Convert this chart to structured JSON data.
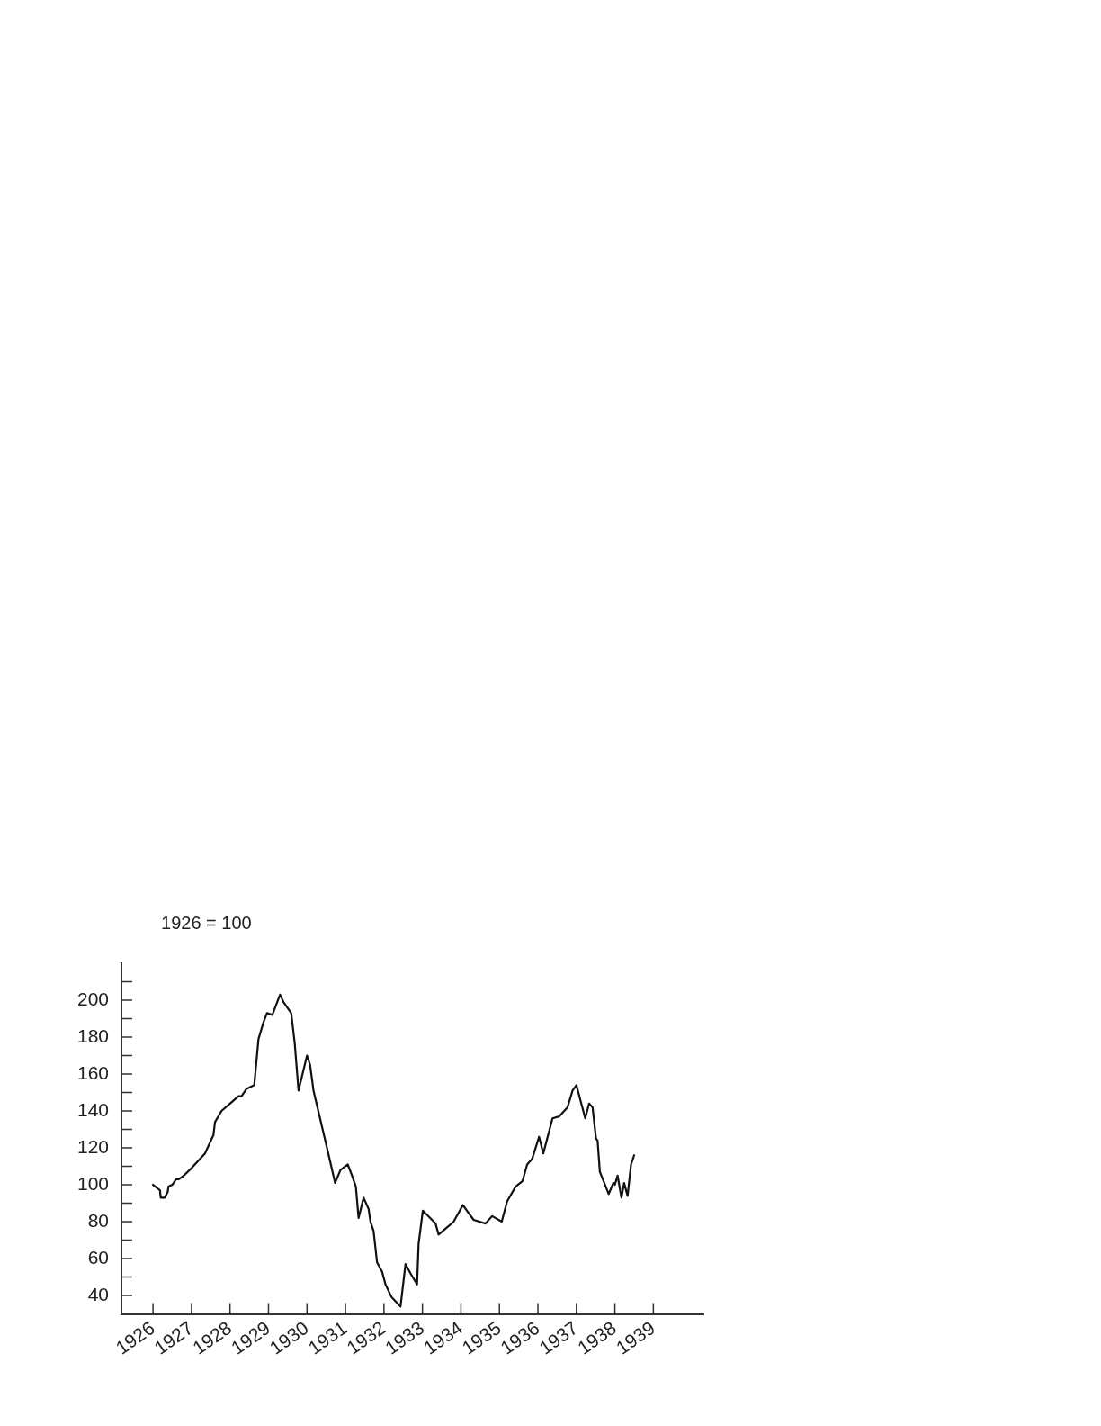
{
  "chart_data": {
    "type": "line",
    "title": "1926 = 100",
    "x": [
      1926.0,
      1926.18,
      1926.2,
      1926.3,
      1926.38,
      1926.4,
      1926.5,
      1926.6,
      1926.67,
      1926.8,
      1927.0,
      1927.35,
      1927.57,
      1927.61,
      1927.78,
      1928.0,
      1928.22,
      1928.3,
      1928.43,
      1928.63,
      1928.74,
      1928.87,
      1928.96,
      1929.1,
      1929.3,
      1929.39,
      1929.59,
      1929.68,
      1929.78,
      1930.0,
      1930.08,
      1930.17,
      1930.52,
      1930.73,
      1930.87,
      1931.06,
      1931.17,
      1931.27,
      1931.34,
      1931.47,
      1931.6,
      1931.65,
      1931.73,
      1931.82,
      1931.95,
      1932.04,
      1932.2,
      1932.43,
      1932.56,
      1932.69,
      1932.86,
      1932.9,
      1933.01,
      1933.34,
      1933.42,
      1933.81,
      1934.05,
      1934.33,
      1934.64,
      1934.81,
      1935.06,
      1935.2,
      1935.42,
      1935.6,
      1935.72,
      1935.85,
      1936.03,
      1936.14,
      1936.38,
      1936.55,
      1936.77,
      1936.9,
      1937.0,
      1937.23,
      1937.33,
      1937.42,
      1937.51,
      1937.55,
      1937.61,
      1937.84,
      1937.96,
      1938.0,
      1938.07,
      1938.17,
      1938.24,
      1938.33,
      1938.42,
      1938.5
    ],
    "series": [
      {
        "color": "#111111",
        "values": [
          100,
          97,
          93,
          93,
          96,
          99,
          100,
          103,
          103,
          105,
          109,
          117,
          127,
          134,
          140,
          144,
          148,
          148,
          152,
          154,
          179,
          188,
          193,
          192,
          203,
          199,
          193,
          177,
          151,
          170,
          165,
          151,
          120,
          101,
          108,
          111,
          105,
          99,
          82,
          93,
          87,
          80,
          75,
          58,
          53,
          46,
          39,
          34,
          57,
          52,
          46,
          68,
          86,
          79,
          73,
          80,
          89,
          81,
          79,
          83,
          80,
          91,
          99,
          102,
          111,
          114,
          126,
          117,
          136,
          137,
          142,
          151,
          154,
          136,
          144,
          142,
          125,
          124,
          107,
          95,
          101,
          100,
          105,
          93,
          101,
          94,
          111,
          116
        ]
      }
    ],
    "xlim": [
      1925.18,
      1940.3
    ],
    "xticks": [
      1926,
      1927,
      1928,
      1929,
      1930,
      1931,
      1932,
      1933,
      1934,
      1935,
      1936,
      1937,
      1938,
      1939
    ],
    "ylim": [
      30,
      220
    ],
    "yticks": [
      40,
      {
        "value": 50,
        "label": null
      },
      60,
      {
        "value": 70,
        "label": null
      },
      80,
      {
        "value": 90,
        "label": null
      },
      100,
      {
        "value": 110,
        "label": null
      },
      120,
      {
        "value": 130,
        "label": null
      },
      140,
      {
        "value": 150,
        "label": null
      },
      160,
      {
        "value": 170,
        "label": null
      },
      180,
      {
        "value": 190,
        "label": null
      },
      200,
      {
        "value": 210,
        "label": null
      }
    ],
    "grid": false,
    "legend": false,
    "marker": "none",
    "line_style": "solid"
  }
}
